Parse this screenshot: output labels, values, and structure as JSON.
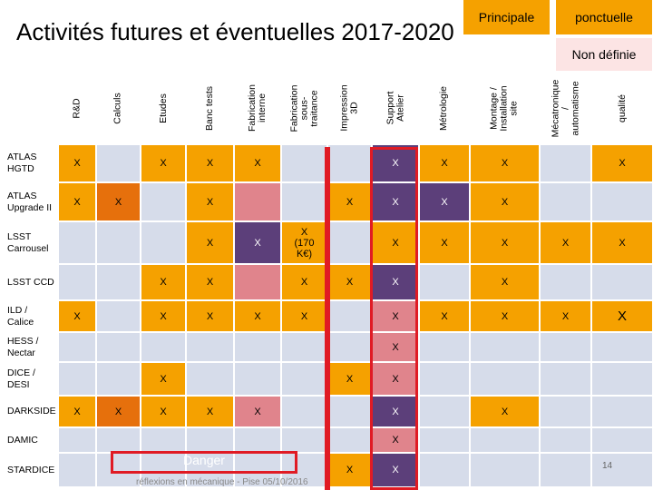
{
  "title": "Activités futures et éventuelles 2017-2020",
  "legend": {
    "principale": "Principale",
    "ponctuelle": "ponctuelle",
    "non_definie": "Non définie"
  },
  "colors": {
    "principale": "#f5a100",
    "ponctuelle": "#e6700c",
    "non_definie": "#fce4e4",
    "empty": "#d6dcea",
    "purple": "#5c3f7a",
    "pink": "#e0848c",
    "highlight": "#e01b24"
  },
  "columns": [
    "R&D",
    "Calculs",
    "Etudes",
    "Banc tests",
    "Fabrication\ninterne",
    "Fabrication\nsous-traitance",
    "Impression 3D",
    "Support\nAtelier",
    "Métrologie",
    "Montage /\nInstallation\nsite",
    "Mécatronique\n/\nautomatisme",
    "qualité"
  ],
  "rows": [
    {
      "label": "ATLAS\nHGTD",
      "cells": [
        {
          "t": "X",
          "c": "principale"
        },
        {
          "t": "",
          "c": "empty"
        },
        {
          "t": "X",
          "c": "principale"
        },
        {
          "t": "X",
          "c": "principale"
        },
        {
          "t": "X",
          "c": "principale"
        },
        {
          "t": "",
          "c": "empty"
        },
        {
          "t": "",
          "c": "empty"
        },
        {
          "t": "X",
          "c": "purple"
        },
        {
          "t": "X",
          "c": "principale"
        },
        {
          "t": "X",
          "c": "principale"
        },
        {
          "t": "",
          "c": "empty"
        },
        {
          "t": "X",
          "c": "principale"
        }
      ]
    },
    {
      "label": "ATLAS\nUpgrade II",
      "cells": [
        {
          "t": "X",
          "c": "principale"
        },
        {
          "t": "X",
          "c": "ponctuelle"
        },
        {
          "t": "",
          "c": "empty"
        },
        {
          "t": "X",
          "c": "principale"
        },
        {
          "t": "",
          "c": "pink"
        },
        {
          "t": "",
          "c": "empty"
        },
        {
          "t": "X",
          "c": "principale"
        },
        {
          "t": "X",
          "c": "purple"
        },
        {
          "t": "X",
          "c": "purple"
        },
        {
          "t": "X",
          "c": "principale"
        },
        {
          "t": "",
          "c": "empty"
        },
        {
          "t": "",
          "c": "empty"
        }
      ]
    },
    {
      "label": "LSST\nCarrousel",
      "cells": [
        {
          "t": "",
          "c": "empty"
        },
        {
          "t": "",
          "c": "empty"
        },
        {
          "t": "",
          "c": "empty"
        },
        {
          "t": "X",
          "c": "principale"
        },
        {
          "t": "X",
          "c": "purple"
        },
        {
          "t": "X\n(170\nK€)",
          "c": "principale"
        },
        {
          "t": "",
          "c": "empty"
        },
        {
          "t": "X",
          "c": "principale"
        },
        {
          "t": "X",
          "c": "principale"
        },
        {
          "t": "X",
          "c": "principale"
        },
        {
          "t": "X",
          "c": "principale"
        },
        {
          "t": "X",
          "c": "principale"
        }
      ]
    },
    {
      "label": "LSST CCD",
      "cells": [
        {
          "t": "",
          "c": "empty"
        },
        {
          "t": "",
          "c": "empty"
        },
        {
          "t": "X",
          "c": "principale"
        },
        {
          "t": "X",
          "c": "principale"
        },
        {
          "t": "",
          "c": "pink"
        },
        {
          "t": "X",
          "c": "principale"
        },
        {
          "t": "X",
          "c": "principale"
        },
        {
          "t": "X",
          "c": "purple"
        },
        {
          "t": "",
          "c": "empty"
        },
        {
          "t": "X",
          "c": "principale"
        },
        {
          "t": "",
          "c": "empty"
        },
        {
          "t": "",
          "c": "empty"
        }
      ]
    },
    {
      "label": "ILD /\nCalice",
      "cells": [
        {
          "t": "X",
          "c": "principale"
        },
        {
          "t": "",
          "c": "empty"
        },
        {
          "t": "X",
          "c": "principale"
        },
        {
          "t": "X",
          "c": "principale"
        },
        {
          "t": "X",
          "c": "principale"
        },
        {
          "t": "X",
          "c": "principale"
        },
        {
          "t": "",
          "c": "empty"
        },
        {
          "t": "X",
          "c": "pink"
        },
        {
          "t": "X",
          "c": "principale"
        },
        {
          "t": "X",
          "c": "principale"
        },
        {
          "t": "X",
          "c": "principale"
        },
        {
          "t": "X",
          "c": "principale"
        }
      ]
    },
    {
      "label": "HESS /\nNectar",
      "cells": [
        {
          "t": "",
          "c": "empty"
        },
        {
          "t": "",
          "c": "empty"
        },
        {
          "t": "",
          "c": "empty"
        },
        {
          "t": "",
          "c": "empty"
        },
        {
          "t": "",
          "c": "empty"
        },
        {
          "t": "",
          "c": "empty"
        },
        {
          "t": "",
          "c": "empty"
        },
        {
          "t": "X",
          "c": "pink"
        },
        {
          "t": "",
          "c": "empty"
        },
        {
          "t": "",
          "c": "empty"
        },
        {
          "t": "",
          "c": "empty"
        },
        {
          "t": "",
          "c": "empty"
        }
      ]
    },
    {
      "label": "DICE /\nDESI",
      "cells": [
        {
          "t": "",
          "c": "empty"
        },
        {
          "t": "",
          "c": "empty"
        },
        {
          "t": "X",
          "c": "principale"
        },
        {
          "t": "",
          "c": "empty"
        },
        {
          "t": "",
          "c": "empty"
        },
        {
          "t": "",
          "c": "empty"
        },
        {
          "t": "X",
          "c": "principale"
        },
        {
          "t": "X",
          "c": "pink"
        },
        {
          "t": "",
          "c": "empty"
        },
        {
          "t": "",
          "c": "empty"
        },
        {
          "t": "",
          "c": "empty"
        },
        {
          "t": "",
          "c": "empty"
        }
      ]
    },
    {
      "label": "DARKSIDE",
      "cells": [
        {
          "t": "X",
          "c": "principale"
        },
        {
          "t": "X",
          "c": "ponctuelle"
        },
        {
          "t": "X",
          "c": "principale"
        },
        {
          "t": "X",
          "c": "principale"
        },
        {
          "t": "X",
          "c": "pink"
        },
        {
          "t": "",
          "c": "empty"
        },
        {
          "t": "",
          "c": "empty"
        },
        {
          "t": "X",
          "c": "purple"
        },
        {
          "t": "",
          "c": "empty"
        },
        {
          "t": "X",
          "c": "principale"
        },
        {
          "t": "",
          "c": "empty"
        },
        {
          "t": "",
          "c": "empty"
        }
      ]
    },
    {
      "label": "DAMIC",
      "cells": [
        {
          "t": "",
          "c": "empty"
        },
        {
          "t": "",
          "c": "empty"
        },
        {
          "t": "",
          "c": "empty"
        },
        {
          "t": "",
          "c": "empty"
        },
        {
          "t": "",
          "c": "empty"
        },
        {
          "t": "",
          "c": "empty"
        },
        {
          "t": "",
          "c": "empty"
        },
        {
          "t": "X",
          "c": "pink"
        },
        {
          "t": "",
          "c": "empty"
        },
        {
          "t": "",
          "c": "empty"
        },
        {
          "t": "",
          "c": "empty"
        },
        {
          "t": "",
          "c": "empty"
        }
      ]
    },
    {
      "label": "STARDICE",
      "cells": [
        {
          "t": "",
          "c": "empty"
        },
        {
          "t": "",
          "c": "empty"
        },
        {
          "t": "",
          "c": "empty"
        },
        {
          "t": "",
          "c": "empty"
        },
        {
          "t": "",
          "c": "empty"
        },
        {
          "t": "",
          "c": "empty"
        },
        {
          "t": "X",
          "c": "principale"
        },
        {
          "t": "X",
          "c": "purple"
        },
        {
          "t": "",
          "c": "empty"
        },
        {
          "t": "",
          "c": "empty"
        },
        {
          "t": "",
          "c": "empty"
        },
        {
          "t": "",
          "c": "empty"
        }
      ]
    }
  ],
  "danger_label": "Danger",
  "footer": "réflexions en mécanique - Pise 05/10/2016",
  "page_number": "14"
}
